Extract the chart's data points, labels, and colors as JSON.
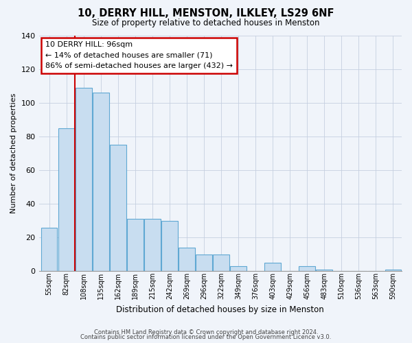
{
  "title": "10, DERRY HILL, MENSTON, ILKLEY, LS29 6NF",
  "subtitle": "Size of property relative to detached houses in Menston",
  "xlabel": "Distribution of detached houses by size in Menston",
  "ylabel": "Number of detached properties",
  "categories": [
    "55sqm",
    "82sqm",
    "108sqm",
    "135sqm",
    "162sqm",
    "189sqm",
    "215sqm",
    "242sqm",
    "269sqm",
    "296sqm",
    "322sqm",
    "349sqm",
    "376sqm",
    "403sqm",
    "429sqm",
    "456sqm",
    "483sqm",
    "510sqm",
    "536sqm",
    "563sqm",
    "590sqm"
  ],
  "values": [
    26,
    85,
    109,
    106,
    75,
    31,
    31,
    30,
    14,
    10,
    10,
    3,
    0,
    5,
    0,
    3,
    1,
    0,
    0,
    0,
    1
  ],
  "bar_color": "#c8ddf0",
  "bar_edge_color": "#5fa8d3",
  "vline_color": "#cc0000",
  "vline_x_index": 1,
  "ylim": [
    0,
    140
  ],
  "yticks": [
    0,
    20,
    40,
    60,
    80,
    100,
    120,
    140
  ],
  "annotation_text": "10 DERRY HILL: 96sqm\n← 14% of detached houses are smaller (71)\n86% of semi-detached houses are larger (432) →",
  "annotation_box_facecolor": "#ffffff",
  "annotation_box_edgecolor": "#cc0000",
  "footer_line1": "Contains HM Land Registry data © Crown copyright and database right 2024.",
  "footer_line2": "Contains public sector information licensed under the Open Government Licence v3.0.",
  "background_color": "#f0f4fa",
  "title_fontsize": 10.5,
  "subtitle_fontsize": 8.5
}
